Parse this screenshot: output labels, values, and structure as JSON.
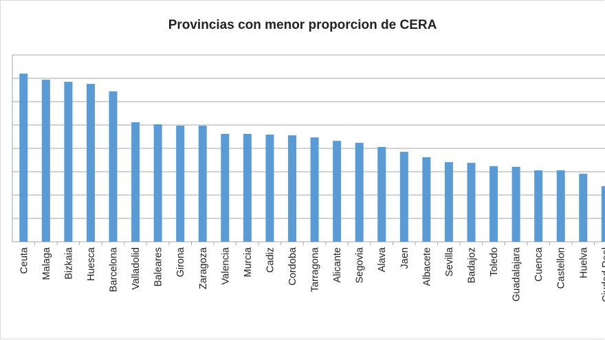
{
  "chart_data": {
    "type": "bar",
    "title": "Provincias con menor proporcion de CERA",
    "xlabel": "",
    "ylabel": "",
    "ylim": [
      0,
      8
    ],
    "grid": true,
    "bar_color": "#5b9bd5",
    "categories": [
      "Ceuta",
      "Malaga",
      "Bizkaia",
      "Huesca",
      "Barcelona",
      "Valladolid",
      "Baleares",
      "Girona",
      "Zaragoza",
      "Valencia",
      "Murcia",
      "Cadiz",
      "Cordoba",
      "Tarragona",
      "Alicante",
      "Segovia",
      "Alava",
      "Jaen",
      "Albacete",
      "Sevilla",
      "Badajoz",
      "Toledo",
      "Guadalajara",
      "Cuenca",
      "Castellon",
      "Huelva",
      "Ciudad Real"
    ],
    "values": [
      7.2,
      6.94,
      6.85,
      6.76,
      6.44,
      5.12,
      5.03,
      4.97,
      4.97,
      4.62,
      4.62,
      4.59,
      4.56,
      4.47,
      4.32,
      4.24,
      4.06,
      3.85,
      3.62,
      3.41,
      3.38,
      3.24,
      3.21,
      3.06,
      3.06,
      2.91,
      2.38
    ]
  }
}
